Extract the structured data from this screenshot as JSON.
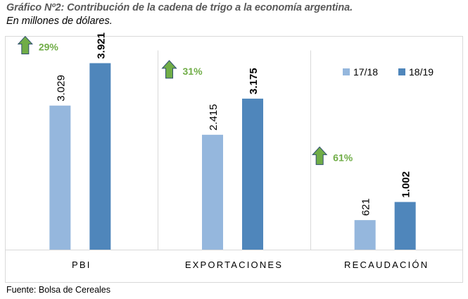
{
  "chart_data": {
    "type": "bar",
    "title": "Gráfico Nº2: Contribución de la cadena de trigo a la economía argentina.",
    "subtitle": "En millones de dólares.",
    "source": "Fuente: Bolsa de Cereales",
    "categories": [
      "PBI",
      "EXPORTACIONES",
      "RECAUDACIÓN"
    ],
    "series": [
      {
        "name": "17/18",
        "values": [
          3029,
          2415,
          621
        ],
        "labels": [
          "3.029",
          "2.415",
          "621"
        ],
        "color": "#95b7dd"
      },
      {
        "name": "18/19",
        "values": [
          3921,
          3175,
          1002
        ],
        "labels": [
          "3.921",
          "3.175",
          "1.002"
        ],
        "color": "#4f86bb"
      }
    ],
    "growth": [
      {
        "category": "PBI",
        "label": "29%"
      },
      {
        "category": "EXPORTACIONES",
        "label": "31%"
      },
      {
        "category": "RECAUDACIÓN",
        "label": "61%"
      }
    ],
    "growth_color": "#70ad47",
    "arrow_fill": "#70ad47",
    "arrow_stroke": "#2f4f6f",
    "legend": {
      "position": "top-right",
      "entries": [
        "17/18",
        "18/19"
      ]
    },
    "xlabel": "",
    "ylabel": "",
    "ylim": [
      0,
      4300
    ],
    "grid": false,
    "axis_visible": false
  }
}
